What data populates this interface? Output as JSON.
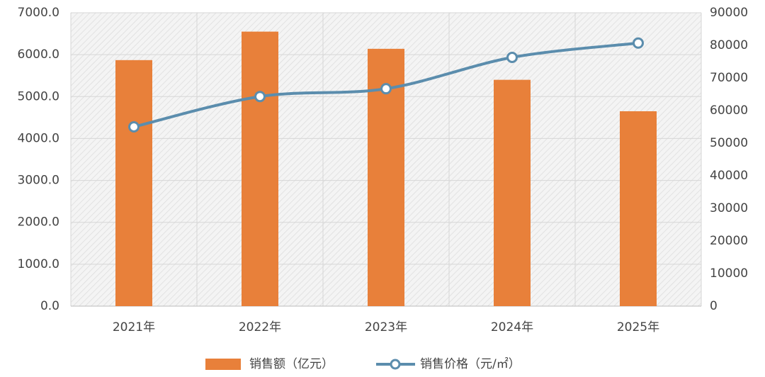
{
  "chart_data": {
    "type": "bar_line",
    "categories": [
      "2021年",
      "2022年",
      "2023年",
      "2024年",
      "2025年"
    ],
    "series": [
      {
        "name": "销售额（亿元）",
        "type": "bar",
        "color": "#e8803a",
        "values": [
          5870,
          6550,
          6140,
          5400,
          4650
        ]
      },
      {
        "name": "销售价格（元/㎡）",
        "type": "line",
        "axis": "y2",
        "color": "#5b8dad",
        "values": [
          55000,
          64300,
          66700,
          76300,
          80700
        ]
      }
    ],
    "ylim": [
      0,
      7000
    ],
    "yticks": [
      {
        "value": 0,
        "label": "0.0"
      },
      {
        "value": 1000,
        "label": "1000.0"
      },
      {
        "value": 2000,
        "label": "2000.0"
      },
      {
        "value": 3000,
        "label": "3000.0"
      },
      {
        "value": 4000,
        "label": "4000.0"
      },
      {
        "value": 5000,
        "label": "5000.0"
      },
      {
        "value": 6000,
        "label": "6000.0"
      },
      {
        "value": 7000,
        "label": "7000.0"
      }
    ],
    "y2lim": [
      0,
      90000
    ],
    "y2ticks": [
      0,
      10000,
      20000,
      30000,
      40000,
      50000,
      60000,
      70000,
      80000,
      90000
    ],
    "grid": true,
    "legend": "bottom"
  }
}
